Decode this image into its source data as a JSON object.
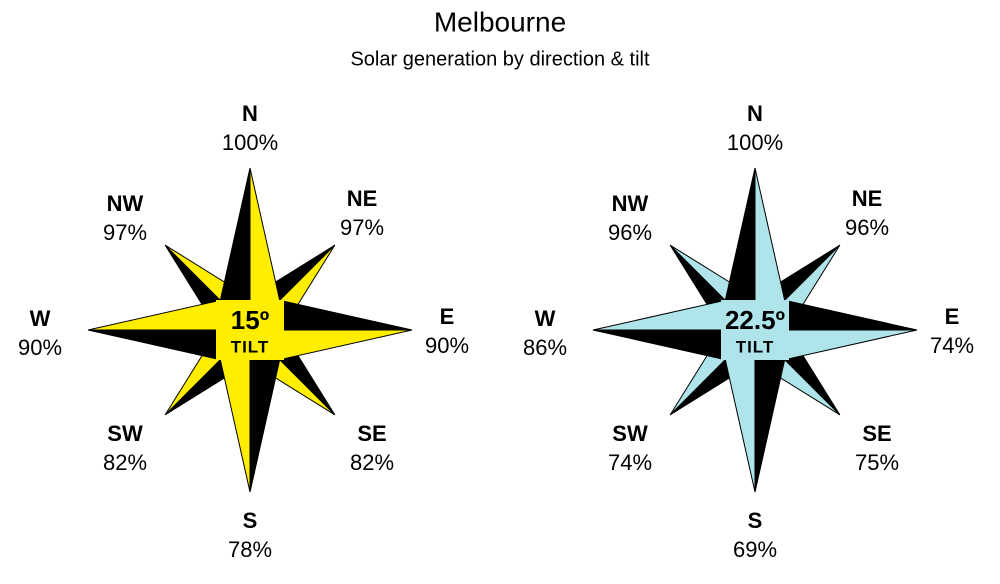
{
  "header": {
    "title": "Melbourne",
    "subtitle": "Solar generation by direction & tilt"
  },
  "roses": [
    {
      "tilt": "15º",
      "tilt_label": "TILT",
      "color": "#ffee00",
      "directions": [
        {
          "label": "N",
          "value": "100%"
        },
        {
          "label": "NE",
          "value": "97%"
        },
        {
          "label": "E",
          "value": "90%"
        },
        {
          "label": "SE",
          "value": "82%"
        },
        {
          "label": "S",
          "value": "78%"
        },
        {
          "label": "SW",
          "value": "82%"
        },
        {
          "label": "W",
          "value": "90%"
        },
        {
          "label": "NW",
          "value": "97%"
        }
      ]
    },
    {
      "tilt": "22.5º",
      "tilt_label": "TILT",
      "color": "#aee4ea",
      "directions": [
        {
          "label": "N",
          "value": "100%"
        },
        {
          "label": "NE",
          "value": "96%"
        },
        {
          "label": "E",
          "value": "74%"
        },
        {
          "label": "SE",
          "value": "75%"
        },
        {
          "label": "S",
          "value": "69%"
        },
        {
          "label": "SW",
          "value": "74%"
        },
        {
          "label": "W",
          "value": "86%"
        },
        {
          "label": "NW",
          "value": "96%"
        }
      ]
    }
  ]
}
